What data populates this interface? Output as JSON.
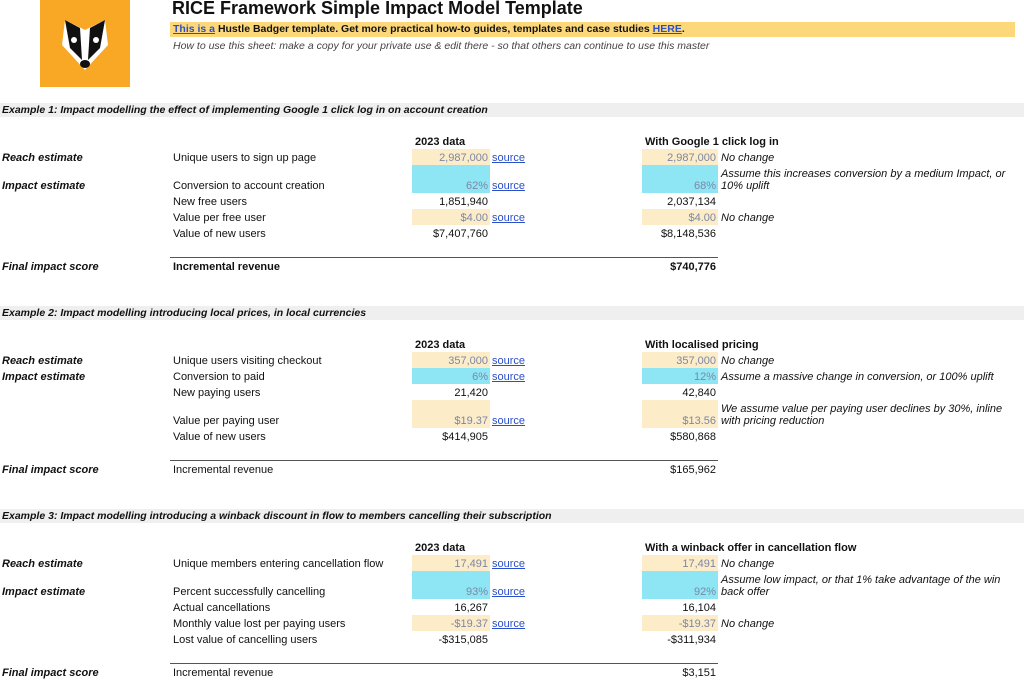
{
  "header": {
    "title": "RICE Framework Simple Impact Model Template",
    "banner": {
      "link_text": "This is a",
      "text": "Hustle Badger template. Get more practical how-to guides, templates and case studies",
      "here": "HERE",
      "end": "."
    },
    "instructions": "How to use this sheet: make a copy for your private use & edit there - so that others can continue to use this master"
  },
  "examples": [
    {
      "title": "Example 1: Impact modelling the effect of implementing Google 1 click log in on account creation",
      "col_a": "2023 data",
      "col_b": "With Google 1 click log in",
      "rows": [
        {
          "label": "Reach estimate",
          "metric": "Unique users to sign up page",
          "a": "2,987,000",
          "a_source": "source",
          "b": "2,987,000",
          "note": "No change"
        },
        {
          "label": "Impact estimate",
          "metric": "Conversion to account creation",
          "a": "62%",
          "a_source": "source",
          "b": "68%",
          "note": "Assume this increases conversion by a medium Impact, or 10% uplift"
        },
        {
          "metric": "New free users",
          "a": "1,851,940",
          "b": "2,037,134"
        },
        {
          "metric": "Value per free user",
          "a": "$4.00",
          "a_source": "source",
          "b": "$4.00",
          "note": "No change"
        },
        {
          "metric": "Value of new users",
          "a": "$7,407,760",
          "b": "$8,148,536"
        }
      ],
      "final": {
        "label": "Final impact score",
        "metric": "Incremental revenue",
        "b": "$740,776"
      }
    },
    {
      "title": "Example 2: Impact modelling introducing local prices, in local currencies",
      "col_a": "2023 data",
      "col_b": "With localised pricing",
      "rows": [
        {
          "label": "Reach estimate",
          "metric": "Unique users visiting checkout",
          "a": "357,000",
          "a_source": "source",
          "b": "357,000",
          "note": "No change"
        },
        {
          "label": "Impact estimate",
          "metric": "Conversion to paid",
          "a": "6%",
          "a_source": "source",
          "b": "12%",
          "note": "Assume a massive change in conversion, or 100% uplift"
        },
        {
          "metric": "New paying users",
          "a": "21,420",
          "b": "42,840"
        },
        {
          "metric": "Value per paying user",
          "a": "$19.37",
          "a_source": "source",
          "b": "$13.56",
          "note": "We assume value per paying user declines by 30%, inline with pricing reduction"
        },
        {
          "metric": "Value of new users",
          "a": "$414,905",
          "b": "$580,868"
        }
      ],
      "final": {
        "label": "Final impact score",
        "metric": "Incremental revenue",
        "b": "$165,962"
      }
    },
    {
      "title": "Example 3: Impact modelling introducing a winback discount in flow to members cancelling their subscription",
      "col_a": "2023 data",
      "col_b": "With a winback offer in cancellation flow",
      "rows": [
        {
          "label": "Reach estimate",
          "metric": "Unique members entering cancellation flow",
          "a": "17,491",
          "a_source": "source",
          "b": "17,491",
          "note": "No change"
        },
        {
          "label": "Impact estimate",
          "metric": "Percent successfully cancelling",
          "a": "93%",
          "a_source": "source",
          "b": "92%",
          "note": "Assume low impact, or that 1% take advantage of the win back offer"
        },
        {
          "metric": "Actual cancellations",
          "a": "16,267",
          "b": "16,104"
        },
        {
          "metric": "Monthly value lost per paying users",
          "a": "-$19.37",
          "a_source": "source",
          "b": "-$19.37",
          "note": "No change"
        },
        {
          "metric": "Lost value of cancelling users",
          "a": "-$315,085",
          "b": "-$311,934"
        }
      ],
      "final": {
        "label": "Final impact score",
        "metric": "Incremental revenue",
        "b": "$3,151"
      }
    }
  ]
}
